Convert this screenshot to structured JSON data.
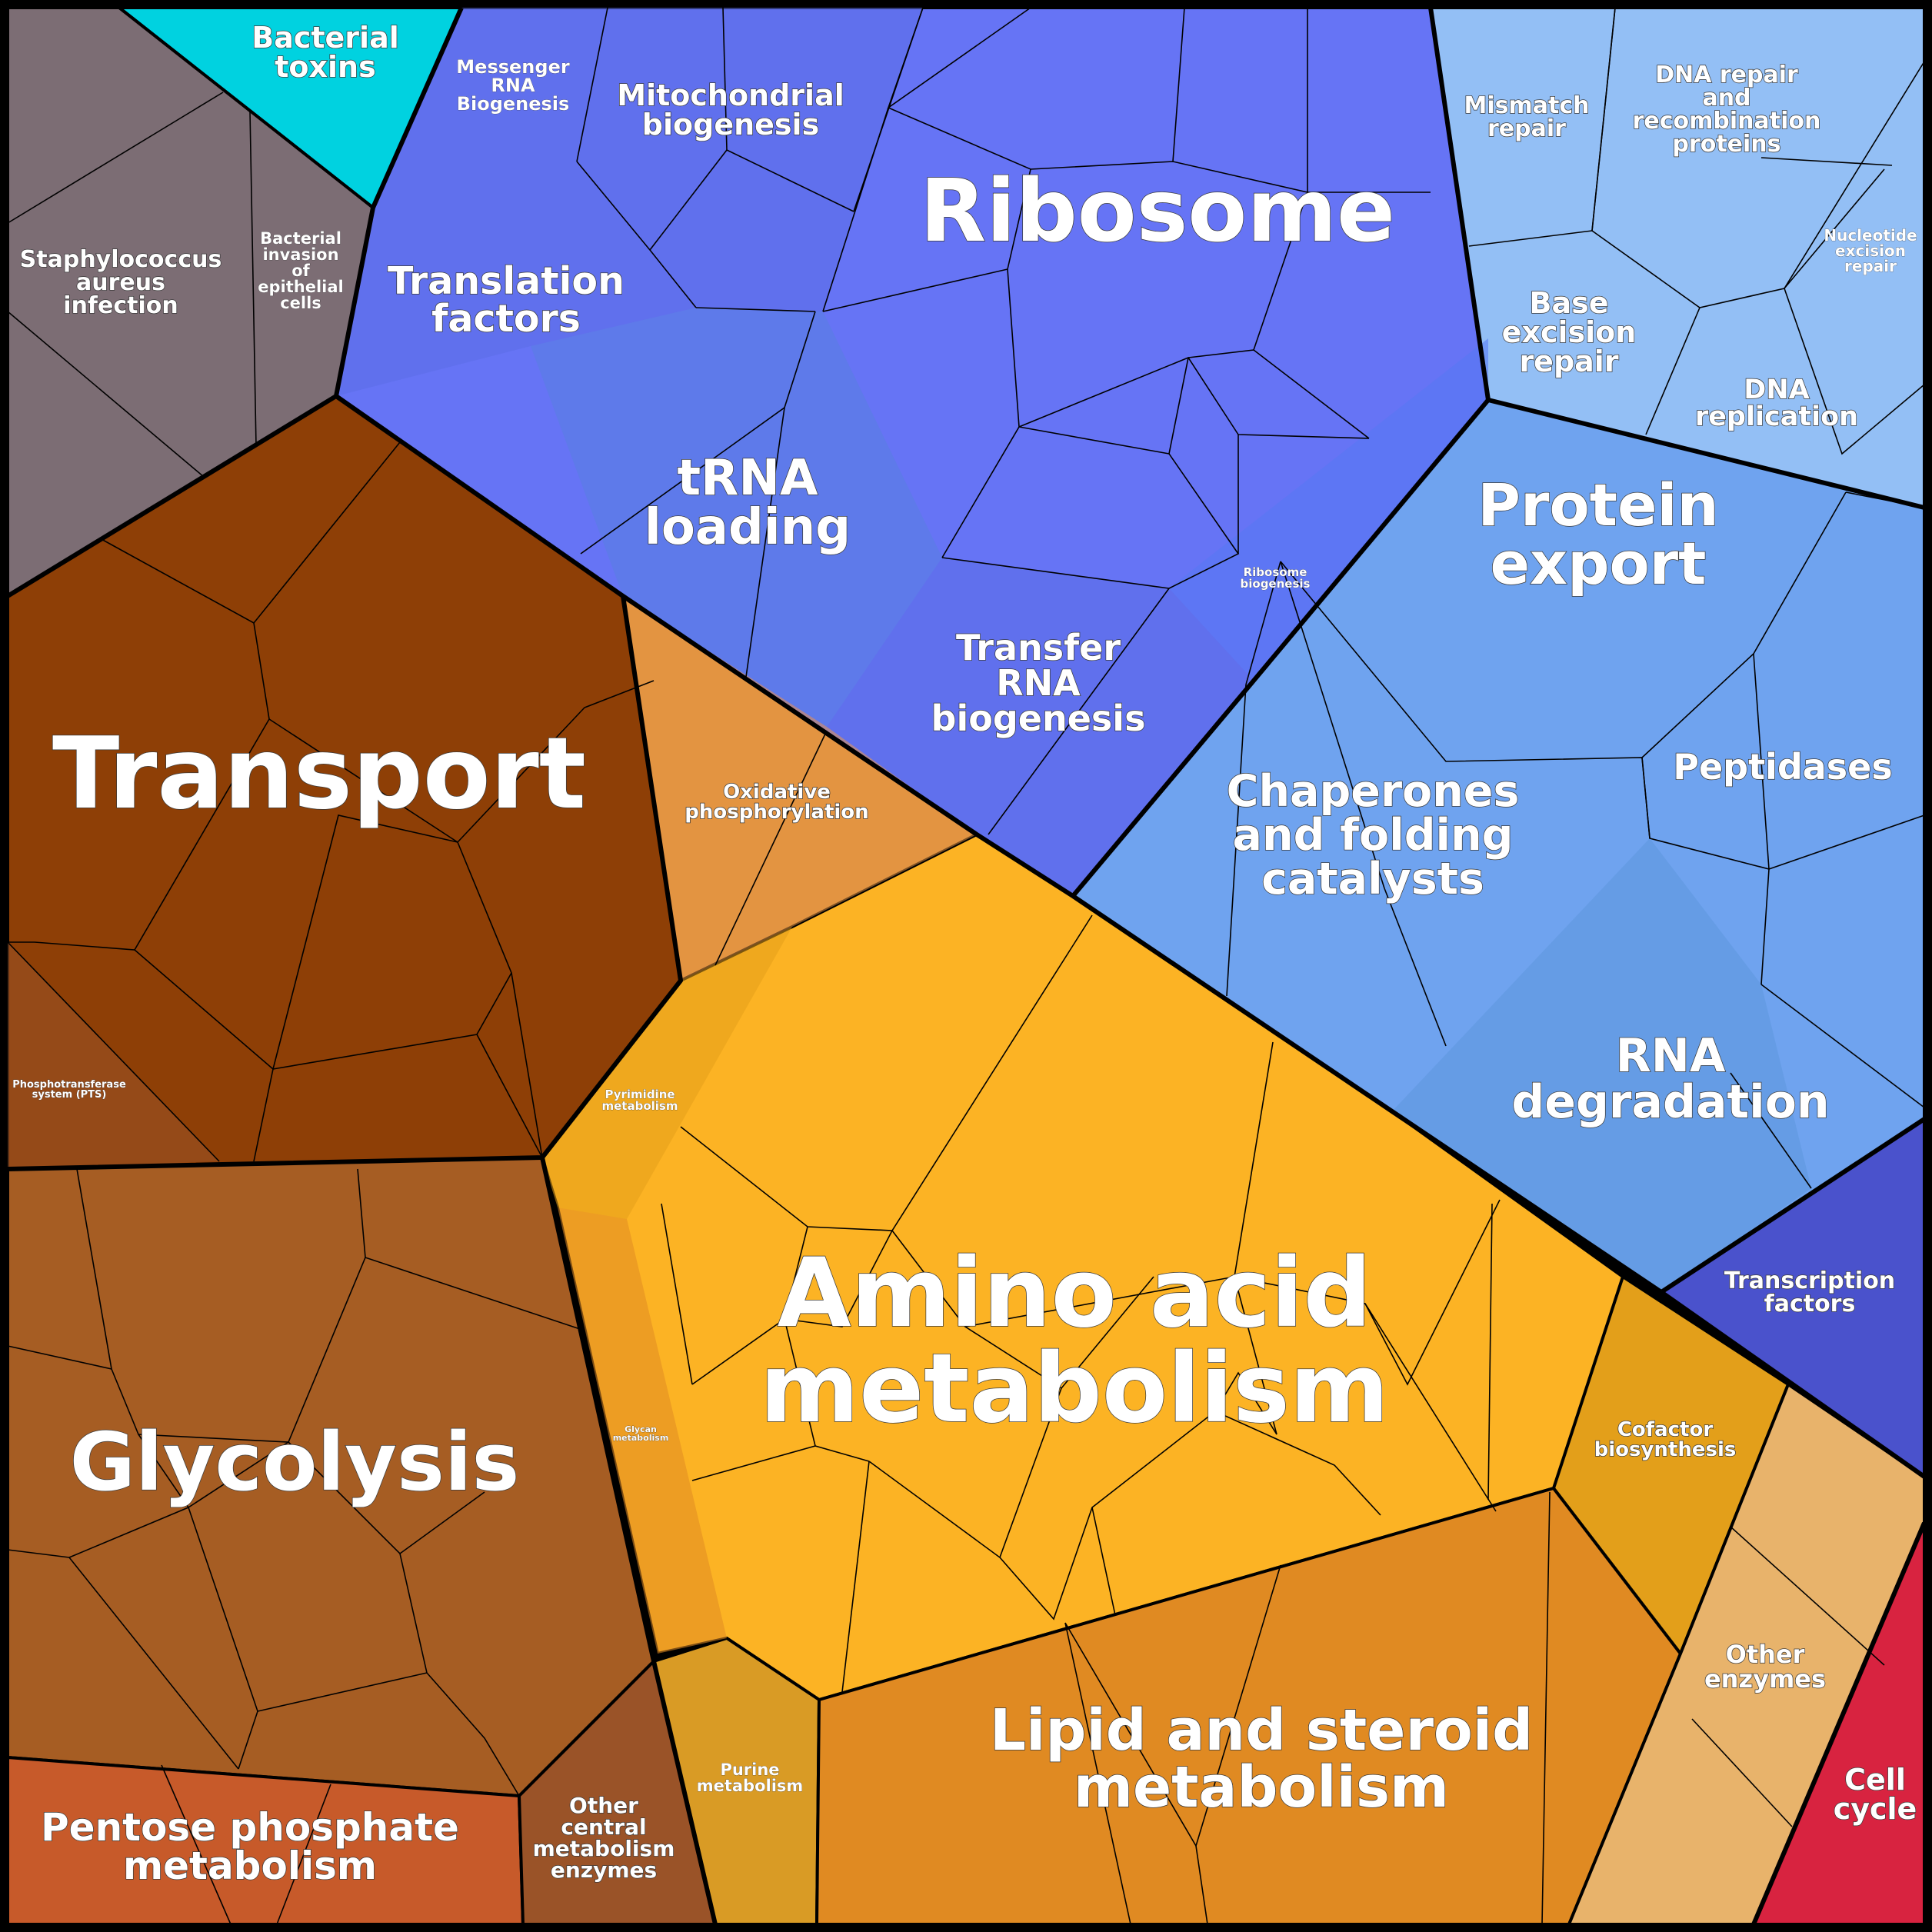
{
  "colors": {
    "toxins": "#00d2e0",
    "infection": "#7c6d74",
    "translation": "#5b6ee6",
    "ribosome": "#6674f5",
    "trna": "#587fe0",
    "ribosome_biogenesis": "#5579f2",
    "dna_repair": "#93bff5",
    "protein_export": "#6fa3ef",
    "rna_degradation": "#5c97dc",
    "transcription_factors": "#4a52cc",
    "transport": "#8e3f06",
    "oxidative": "#e39442",
    "amino_acid": "#fcb324",
    "glycolysis": "#a65d23",
    "pentose": "#c75a2a",
    "other_central": "#9a5328",
    "purine": "#d99b25",
    "lipid": "#e08a22",
    "cofactor": "#e39f1a",
    "other_enzymes": "#e8b36b",
    "cell_cycle": "#d82340"
  },
  "labels": {
    "bacterial_toxins": [
      "Bacterial",
      "toxins"
    ],
    "messenger_rna": [
      "Messenger",
      "RNA",
      "Biogenesis"
    ],
    "mitochondrial": [
      "Mitochondrial",
      "biogenesis"
    ],
    "ribosome": [
      "Ribosome"
    ],
    "mismatch_repair": [
      "Mismatch",
      "repair"
    ],
    "dna_repair_recomb": [
      "DNA repair",
      "and",
      "recombination",
      "proteins"
    ],
    "nucleotide_excision": [
      "Nucleotide",
      "excision",
      "repair"
    ],
    "staph": [
      "Staphylococcus",
      "aureus",
      "infection"
    ],
    "bacterial_invasion": [
      "Bacterial",
      "invasion",
      "of",
      "epithelial",
      "cells"
    ],
    "translation_factors": [
      "Translation",
      "factors"
    ],
    "base_excision": [
      "Base",
      "excision",
      "repair"
    ],
    "dna_replication": [
      "DNA",
      "replication"
    ],
    "trna_loading": [
      "tRNA",
      "loading"
    ],
    "protein_export": [
      "Protein",
      "export"
    ],
    "ribosome_biogenesis": [
      "Ribosome",
      "biogenesis"
    ],
    "transfer_rna": [
      "Transfer",
      "RNA",
      "biogenesis"
    ],
    "transport": [
      "Transport"
    ],
    "oxidative": [
      "Oxidative",
      "phosphorylation"
    ],
    "chaperones": [
      "Chaperones",
      "and folding",
      "catalysts"
    ],
    "peptidases": [
      "Peptidases"
    ],
    "pts": [
      "Phosphotransferase",
      "system (PTS)"
    ],
    "pyrimidine": [
      "Pyrimidine",
      "metabolism"
    ],
    "rna_degradation": [
      "RNA",
      "degradation"
    ],
    "amino_acid": [
      "Amino acid",
      "metabolism"
    ],
    "transcription_factors": [
      "Transcription",
      "factors"
    ],
    "glycan": [
      "Glycan",
      "metabolism"
    ],
    "glycolysis": [
      "Glycolysis"
    ],
    "cofactor": [
      "Cofactor",
      "biosynthesis"
    ],
    "other_enzymes": [
      "Other",
      "enzymes"
    ],
    "purine": [
      "Purine",
      "metabolism"
    ],
    "lipid": [
      "Lipid and steroid",
      "metabolism"
    ],
    "cell_cycle": [
      "Cell",
      "cycle"
    ],
    "pentose": [
      "Pentose phosphate",
      "metabolism"
    ],
    "other_central": [
      "Other",
      "central",
      "metabolism",
      "enzymes"
    ]
  }
}
